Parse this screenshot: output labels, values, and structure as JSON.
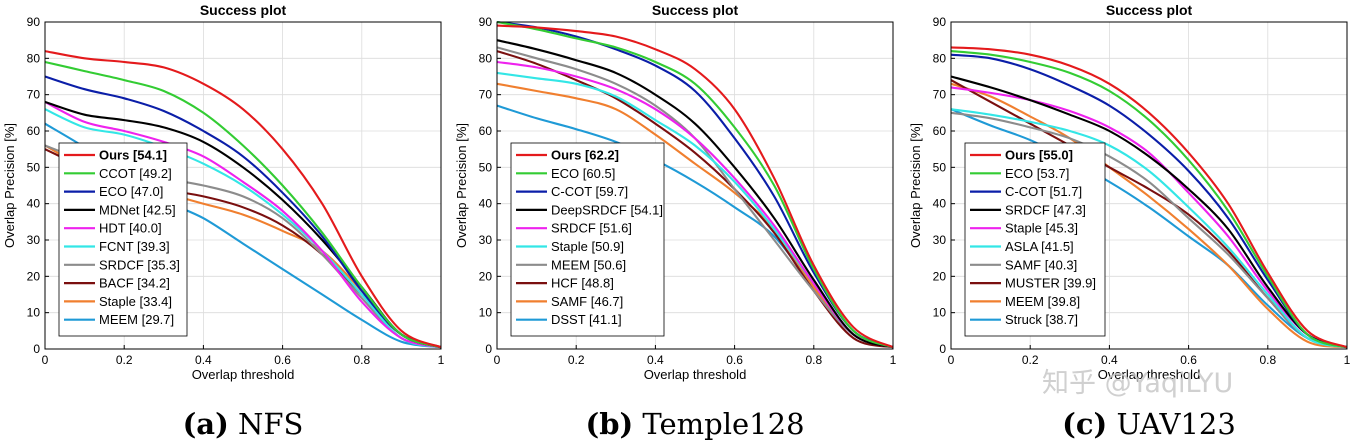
{
  "figure": {
    "watermark": "知乎 @YaqiLYU"
  },
  "colors": {
    "red": "#e41a1c",
    "green": "#33cc33",
    "blue": "#0b1ea8",
    "black": "#000000",
    "magenta": "#ee22ee",
    "cyan": "#33e6e6",
    "gray": "#8c8c8c",
    "darkred": "#7a0f0f",
    "orange": "#f07f2f",
    "skyblue": "#1f9ad6"
  },
  "chart_data": [
    {
      "type": "line",
      "title": "Success plot",
      "xlabel": "Overlap threshold",
      "ylabel": "Overlap Precision [%]",
      "xlim": [
        0,
        1
      ],
      "ylim": [
        0,
        90
      ],
      "xticks": [
        "0",
        "0.2",
        "0.4",
        "0.6",
        "0.8",
        "1"
      ],
      "yticks": [
        "0",
        "10",
        "20",
        "30",
        "40",
        "50",
        "60",
        "70",
        "80",
        "90"
      ],
      "grid": true,
      "legend_position": "bottom-left",
      "caption_label": "(a)",
      "caption_name": "NFS",
      "x": [
        0,
        0.1,
        0.2,
        0.3,
        0.4,
        0.5,
        0.6,
        0.7,
        0.8,
        0.9,
        1.0
      ],
      "series": [
        {
          "name": "Ours [54.1]",
          "color": "red",
          "bold": true,
          "values": [
            82,
            80,
            79,
            77.5,
            73,
            66,
            55,
            40,
            20,
            5,
            0.5
          ]
        },
        {
          "name": "CCOT [49.2]",
          "color": "green",
          "values": [
            79,
            76.5,
            74,
            71,
            65,
            56,
            45,
            32,
            17,
            4,
            0.5
          ]
        },
        {
          "name": "ECO [47.0]",
          "color": "blue",
          "values": [
            75,
            71.5,
            69,
            65.5,
            60,
            53,
            43,
            31,
            16,
            4,
            0.5
          ]
        },
        {
          "name": "MDNet [42.5]",
          "color": "black",
          "values": [
            68,
            64.5,
            63,
            61,
            57,
            50,
            41,
            30,
            17,
            4,
            0.5
          ]
        },
        {
          "name": "HDT [40.0]",
          "color": "magenta",
          "values": [
            68,
            62.5,
            60,
            57,
            53,
            46,
            38,
            27,
            13,
            3,
            0.5
          ]
        },
        {
          "name": "FCNT [39.3]",
          "color": "cyan",
          "values": [
            66,
            61,
            59,
            55.5,
            51,
            45,
            37,
            27,
            15,
            3,
            0.5
          ]
        },
        {
          "name": "SRDCF [35.3]",
          "color": "gray",
          "values": [
            56,
            52,
            49.5,
            47,
            45,
            42,
            36,
            26,
            14,
            3,
            0.5
          ]
        },
        {
          "name": "BACF [34.2]",
          "color": "darkred",
          "values": [
            55,
            50,
            47,
            44,
            42,
            39,
            34,
            26,
            15,
            4,
            0.5
          ]
        },
        {
          "name": "Staple [33.4]",
          "color": "orange",
          "values": [
            56,
            50,
            46,
            43,
            40,
            37,
            32.5,
            27,
            16,
            4,
            0.5
          ]
        },
        {
          "name": "MEEM [29.7]",
          "color": "skyblue",
          "values": [
            62,
            55.5,
            48,
            41,
            36,
            29,
            22,
            15,
            8,
            2,
            0.5
          ]
        }
      ]
    },
    {
      "type": "line",
      "title": "Success plot",
      "xlabel": "Overlap threshold",
      "ylabel": "Overlap Precision [%]",
      "xlim": [
        0,
        1
      ],
      "ylim": [
        0,
        90
      ],
      "xticks": [
        "0",
        "0.2",
        "0.4",
        "0.6",
        "0.8",
        "1"
      ],
      "yticks": [
        "0",
        "10",
        "20",
        "30",
        "40",
        "50",
        "60",
        "70",
        "80",
        "90"
      ],
      "grid": true,
      "legend_position": "bottom-left",
      "caption_label": "(b)",
      "caption_name": "Temple128",
      "x": [
        0,
        0.1,
        0.2,
        0.3,
        0.4,
        0.5,
        0.6,
        0.7,
        0.8,
        0.9,
        1.0
      ],
      "series": [
        {
          "name": "Ours [62.2]",
          "color": "red",
          "bold": true,
          "values": [
            89,
            88.5,
            87.5,
            86,
            82.5,
            77,
            66,
            47,
            23,
            6,
            0.5
          ]
        },
        {
          "name": "ECO [60.5]",
          "color": "green",
          "values": [
            90,
            88,
            85.5,
            83,
            79,
            73,
            61,
            45,
            22,
            5,
            0.5
          ]
        },
        {
          "name": "C-COT [59.7]",
          "color": "blue",
          "values": [
            90,
            88.5,
            86,
            82.5,
            78,
            71,
            58,
            42,
            21,
            5,
            0.5
          ]
        },
        {
          "name": "DeepSRDCF [54.1]",
          "color": "black",
          "values": [
            85,
            82.5,
            79.5,
            76,
            70,
            62,
            50,
            36,
            19,
            4,
            0.5
          ]
        },
        {
          "name": "SRDCF [51.6]",
          "color": "magenta",
          "values": [
            79,
            77.5,
            75,
            71.5,
            66,
            58,
            47,
            34,
            18,
            4,
            0.5
          ]
        },
        {
          "name": "Staple [50.9]",
          "color": "cyan",
          "values": [
            76,
            74.5,
            73,
            69.5,
            63,
            56,
            46,
            33,
            18,
            4,
            0.5
          ]
        },
        {
          "name": "MEEM [50.6]",
          "color": "gray",
          "values": [
            83,
            80,
            77,
            73,
            67,
            58,
            44,
            30,
            16,
            4,
            0.5
          ]
        },
        {
          "name": "HCF [48.8]",
          "color": "darkred",
          "values": [
            82,
            78.5,
            74,
            69,
            62,
            54,
            44,
            32,
            16,
            3,
            0.5
          ]
        },
        {
          "name": "SAMF [46.7]",
          "color": "orange",
          "values": [
            73,
            71,
            69,
            66,
            59,
            51,
            43,
            33,
            17,
            4,
            0.5
          ]
        },
        {
          "name": "DSST [41.1]",
          "color": "skyblue",
          "values": [
            67,
            63.5,
            60.5,
            57,
            52,
            46,
            39,
            31,
            17,
            4,
            0.5
          ]
        }
      ]
    },
    {
      "type": "line",
      "title": "Success plot",
      "xlabel": "Overlap threshold",
      "ylabel": "Overlap Precision [%]",
      "xlim": [
        0,
        1
      ],
      "ylim": [
        0,
        90
      ],
      "xticks": [
        "0",
        "0.2",
        "0.4",
        "0.6",
        "0.8",
        "1"
      ],
      "yticks": [
        "0",
        "10",
        "20",
        "30",
        "40",
        "50",
        "60",
        "70",
        "80",
        "90"
      ],
      "grid": true,
      "legend_position": "bottom-left",
      "caption_label": "(c)",
      "caption_name": "UAV123",
      "x": [
        0,
        0.1,
        0.2,
        0.3,
        0.4,
        0.5,
        0.6,
        0.7,
        0.8,
        0.9,
        1.0
      ],
      "series": [
        {
          "name": "Ours [55.0]",
          "color": "red",
          "bold": true,
          "values": [
            83,
            82.5,
            81,
            78,
            73,
            65,
            54,
            40,
            21,
            5,
            0.5
          ]
        },
        {
          "name": "ECO [53.7]",
          "color": "green",
          "values": [
            82,
            81,
            79,
            76,
            71,
            63,
            52,
            38,
            20,
            4,
            0.5
          ]
        },
        {
          "name": "C-COT [51.7]",
          "color": "blue",
          "values": [
            81,
            80,
            77,
            72.5,
            67,
            59,
            49,
            36,
            19,
            4,
            0.5
          ]
        },
        {
          "name": "SRDCF [47.3]",
          "color": "black",
          "values": [
            75,
            72,
            68.5,
            64.5,
            60,
            53,
            44,
            33,
            17,
            4,
            0.5
          ]
        },
        {
          "name": "Staple [45.3]",
          "color": "magenta",
          "values": [
            72,
            70.5,
            68.5,
            65.5,
            61,
            54,
            43,
            31,
            16,
            4,
            0.5
          ]
        },
        {
          "name": "ASLA [41.5]",
          "color": "cyan",
          "values": [
            66,
            64.5,
            62.5,
            60,
            56,
            49,
            39,
            28,
            15,
            3,
            0.5
          ]
        },
        {
          "name": "SAMF [40.3]",
          "color": "gray",
          "values": [
            65,
            63.5,
            61,
            58,
            53,
            46,
            36,
            26,
            14,
            3,
            0.5
          ]
        },
        {
          "name": "MUSTER [39.9]",
          "color": "darkred",
          "values": [
            74,
            68,
            62,
            56,
            50,
            44,
            37,
            27,
            14,
            3,
            0.5
          ]
        },
        {
          "name": "MEEM [39.8]",
          "color": "orange",
          "values": [
            73,
            69.5,
            64,
            58,
            50,
            42,
            33,
            23,
            11,
            2,
            0.5
          ]
        },
        {
          "name": "Struck [38.7]",
          "color": "skyblue",
          "values": [
            66,
            61.5,
            57.5,
            52,
            46,
            39,
            31,
            23,
            12,
            3,
            0.5
          ]
        }
      ]
    }
  ]
}
